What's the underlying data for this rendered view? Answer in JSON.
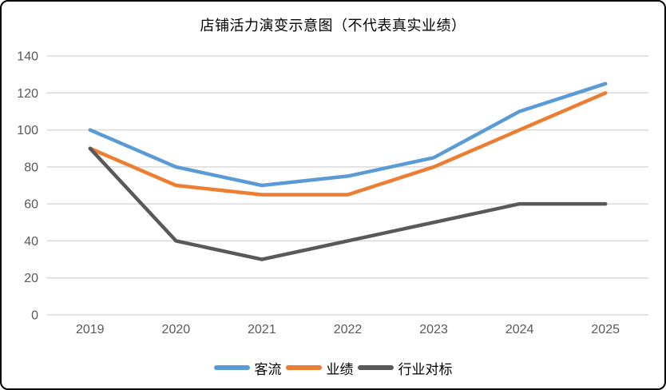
{
  "chart_data": {
    "type": "line",
    "title": "店铺活力演变示意图（不代表真实业绩）",
    "categories": [
      "2019",
      "2020",
      "2021",
      "2022",
      "2023",
      "2024",
      "2025"
    ],
    "series": [
      {
        "name": "客流",
        "color": "#5B9BD5",
        "values": [
          100,
          80,
          70,
          75,
          85,
          110,
          125
        ]
      },
      {
        "name": "业绩",
        "color": "#ED7D31",
        "values": [
          90,
          70,
          65,
          65,
          80,
          100,
          120
        ]
      },
      {
        "name": "行业对标",
        "color": "#595959",
        "values": [
          90,
          40,
          30,
          40,
          50,
          60,
          60
        ]
      }
    ],
    "xlabel": "",
    "ylabel": "",
    "ylim": [
      0,
      140
    ],
    "ytick_step": 20,
    "ytick_labels": [
      "0",
      "20",
      "40",
      "60",
      "80",
      "100",
      "120",
      "140"
    ],
    "grid": true,
    "legend_position": "bottom"
  },
  "colors": {
    "gridline": "#D9D9D9",
    "axis_text": "#595959",
    "title_text": "#000000",
    "frame_border": "#000000",
    "background": "#FFFFFF"
  }
}
